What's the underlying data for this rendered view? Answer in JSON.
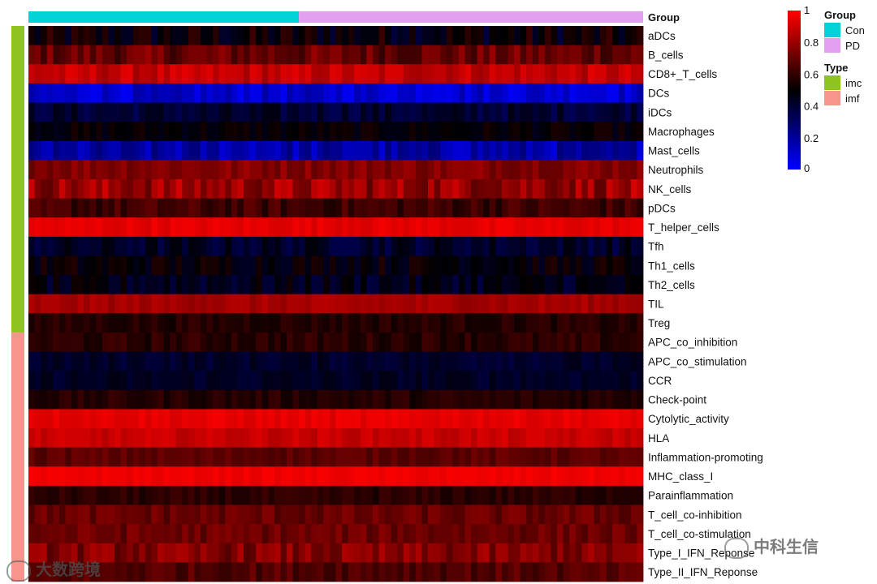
{
  "chart_data": {
    "type": "heatmap",
    "title": "",
    "n_samples": 100,
    "group_split": 44,
    "rows": [
      {
        "label": "aDCs",
        "type": "imc",
        "mean": 0.5,
        "spread": 0.12
      },
      {
        "label": "B_cells",
        "type": "imc",
        "mean": 0.7,
        "spread": 0.1
      },
      {
        "label": "CD8+_T_cells",
        "type": "imc",
        "mean": 0.88,
        "spread": 0.07
      },
      {
        "label": "DCs",
        "type": "imc",
        "mean": 0.1,
        "spread": 0.08
      },
      {
        "label": "iDCs",
        "type": "imc",
        "mean": 0.4,
        "spread": 0.07
      },
      {
        "label": "Macrophages",
        "type": "imc",
        "mean": 0.5,
        "spread": 0.05
      },
      {
        "label": "Mast_cells",
        "type": "imc",
        "mean": 0.17,
        "spread": 0.1
      },
      {
        "label": "Neutrophils",
        "type": "imc",
        "mean": 0.76,
        "spread": 0.06
      },
      {
        "label": "NK_cells",
        "type": "imc",
        "mean": 0.8,
        "spread": 0.12
      },
      {
        "label": "pDCs",
        "type": "imc",
        "mean": 0.62,
        "spread": 0.07
      },
      {
        "label": "T_helper_cells",
        "type": "imc",
        "mean": 0.95,
        "spread": 0.03
      },
      {
        "label": "Tfh",
        "type": "imc",
        "mean": 0.42,
        "spread": 0.07
      },
      {
        "label": "Th1_cells",
        "type": "imc",
        "mean": 0.5,
        "spread": 0.07
      },
      {
        "label": "Th2_cells",
        "type": "imc",
        "mean": 0.45,
        "spread": 0.08
      },
      {
        "label": "TIL",
        "type": "imc",
        "mean": 0.82,
        "spread": 0.04
      },
      {
        "label": "Treg",
        "type": "imc",
        "mean": 0.57,
        "spread": 0.04
      },
      {
        "label": "APC_co_inhibition",
        "type": "imf",
        "mean": 0.58,
        "spread": 0.05
      },
      {
        "label": "APC_co_stimulation",
        "type": "imf",
        "mean": 0.42,
        "spread": 0.04
      },
      {
        "label": "CCR",
        "type": "imf",
        "mean": 0.43,
        "spread": 0.04
      },
      {
        "label": "Check-point",
        "type": "imf",
        "mean": 0.57,
        "spread": 0.04
      },
      {
        "label": "Cytolytic_activity",
        "type": "imf",
        "mean": 0.95,
        "spread": 0.03
      },
      {
        "label": "HLA",
        "type": "imf",
        "mean": 0.89,
        "spread": 0.04
      },
      {
        "label": "Inflammation-promoting",
        "type": "imf",
        "mean": 0.68,
        "spread": 0.04
      },
      {
        "label": "MHC_class_I",
        "type": "imf",
        "mean": 0.97,
        "spread": 0.02
      },
      {
        "label": "Parainflammation",
        "type": "imf",
        "mean": 0.58,
        "spread": 0.04
      },
      {
        "label": "T_cell_co-inhibition",
        "type": "imf",
        "mean": 0.7,
        "spread": 0.06
      },
      {
        "label": "T_cell_co-stimulation",
        "type": "imf",
        "mean": 0.71,
        "spread": 0.06
      },
      {
        "label": "Type_I_IFN_Reponse",
        "type": "imf",
        "mean": 0.75,
        "spread": 0.09
      },
      {
        "label": "Type_II_IFN_Reponse",
        "type": "imf",
        "mean": 0.66,
        "spread": 0.06
      }
    ],
    "color_scale": {
      "min": 0,
      "mid": 0.5,
      "max": 1,
      "low": "#0000ff",
      "mid_color": "#000000",
      "high": "#ff0000",
      "ticks": [
        "1",
        "0.8",
        "0.6",
        "0.4",
        "0.2",
        "0"
      ]
    },
    "group_annotation": {
      "title": "Group",
      "entries": [
        {
          "name": "Con",
          "color": "#00d2d8"
        },
        {
          "name": "PD",
          "color": "#e3a0f0"
        }
      ]
    },
    "type_annotation": {
      "title": "Type",
      "entries": [
        {
          "name": "imc",
          "color": "#8fc31f"
        },
        {
          "name": "imf",
          "color": "#f6958b"
        }
      ]
    },
    "header_label": "Group"
  },
  "watermarks": {
    "left": "大数跨境",
    "right": "中科生信"
  }
}
